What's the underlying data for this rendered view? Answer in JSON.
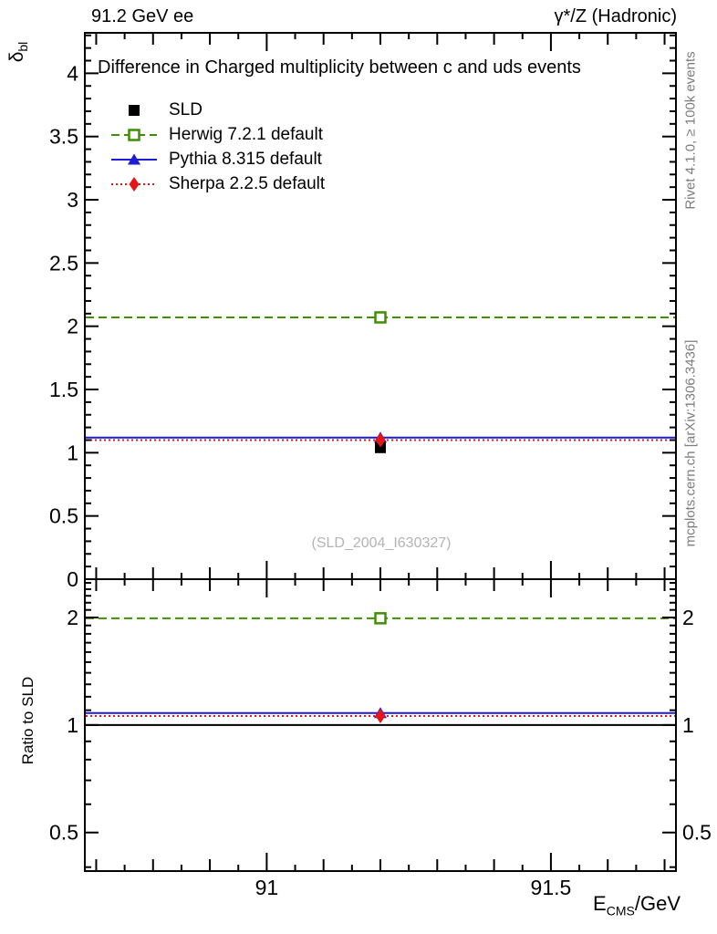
{
  "header": {
    "left": "91.2 GeV ee",
    "right": "γ*/Z (Hadronic)"
  },
  "side_texts": {
    "rivet": "Rivet 4.1.0, ≥ 100k events",
    "mcplots": "mcplots.cern.ch [arXiv:1306.3436]"
  },
  "watermark": "(SLD_2004_I630327)",
  "chart_data": {
    "type": "line",
    "title": "Difference in Charged multiplicity between c and uds events",
    "xlabel": {
      "base": "E",
      "sub": "CMS",
      "rest": "/GeV"
    },
    "ylabel": {
      "base": "δ",
      "sub": "bl"
    },
    "ratio_label": "Ratio to SLD",
    "x_point": 91.2,
    "xlim": [
      90.68,
      91.72
    ],
    "x_minor_step": 0.05,
    "x_medium_step": 0.1,
    "x_major_ticks": [
      91,
      91.5
    ],
    "x_tick_labels": [
      "91",
      "91.5"
    ],
    "main_panel": {
      "scale": "linear",
      "ylim": [
        0,
        4.32
      ],
      "minor_step": 0.1,
      "major_ticks": [
        0,
        0.5,
        1,
        1.5,
        2,
        2.5,
        3,
        3.5,
        4
      ],
      "tick_labels": [
        "0",
        "0.5",
        "1",
        "1.5",
        "2",
        "2.5",
        "3",
        "3.5",
        "4"
      ]
    },
    "ratio_panel": {
      "scale": "log",
      "ylim": [
        0.39,
        2.56
      ],
      "minor_ticks": [
        0.4,
        0.6,
        0.7,
        0.8,
        0.9,
        1.1,
        1.2,
        1.3,
        1.4,
        1.5,
        1.6,
        1.7,
        1.8,
        1.9,
        2.1,
        2.2,
        2.3,
        2.4,
        2.5
      ],
      "major_ticks": [
        0.5,
        1,
        2
      ],
      "tick_labels": [
        "0.5",
        "1",
        "2"
      ],
      "reference_line": 1.0
    },
    "series": [
      {
        "name": "SLD",
        "color": "#000000",
        "marker": "square-filled",
        "line": "none",
        "value": 1.04,
        "ratio": 1.0,
        "is_reference": true
      },
      {
        "name": "Herwig 7.2.1 default",
        "color": "#3f8f05",
        "marker": "square-open",
        "line": "dashed",
        "value": 2.07,
        "ratio": 1.99,
        "is_reference": false
      },
      {
        "name": "Pythia 8.315 default",
        "color": "#1c1cd2",
        "marker": "triangle-filled",
        "line": "solid",
        "value": 1.12,
        "ratio": 1.08,
        "is_reference": false
      },
      {
        "name": "Sherpa 2.2.5 default",
        "color": "#e51616",
        "marker": "diamond-filled",
        "line": "dotted",
        "value": 1.1,
        "ratio": 1.06,
        "is_reference": false
      }
    ]
  }
}
